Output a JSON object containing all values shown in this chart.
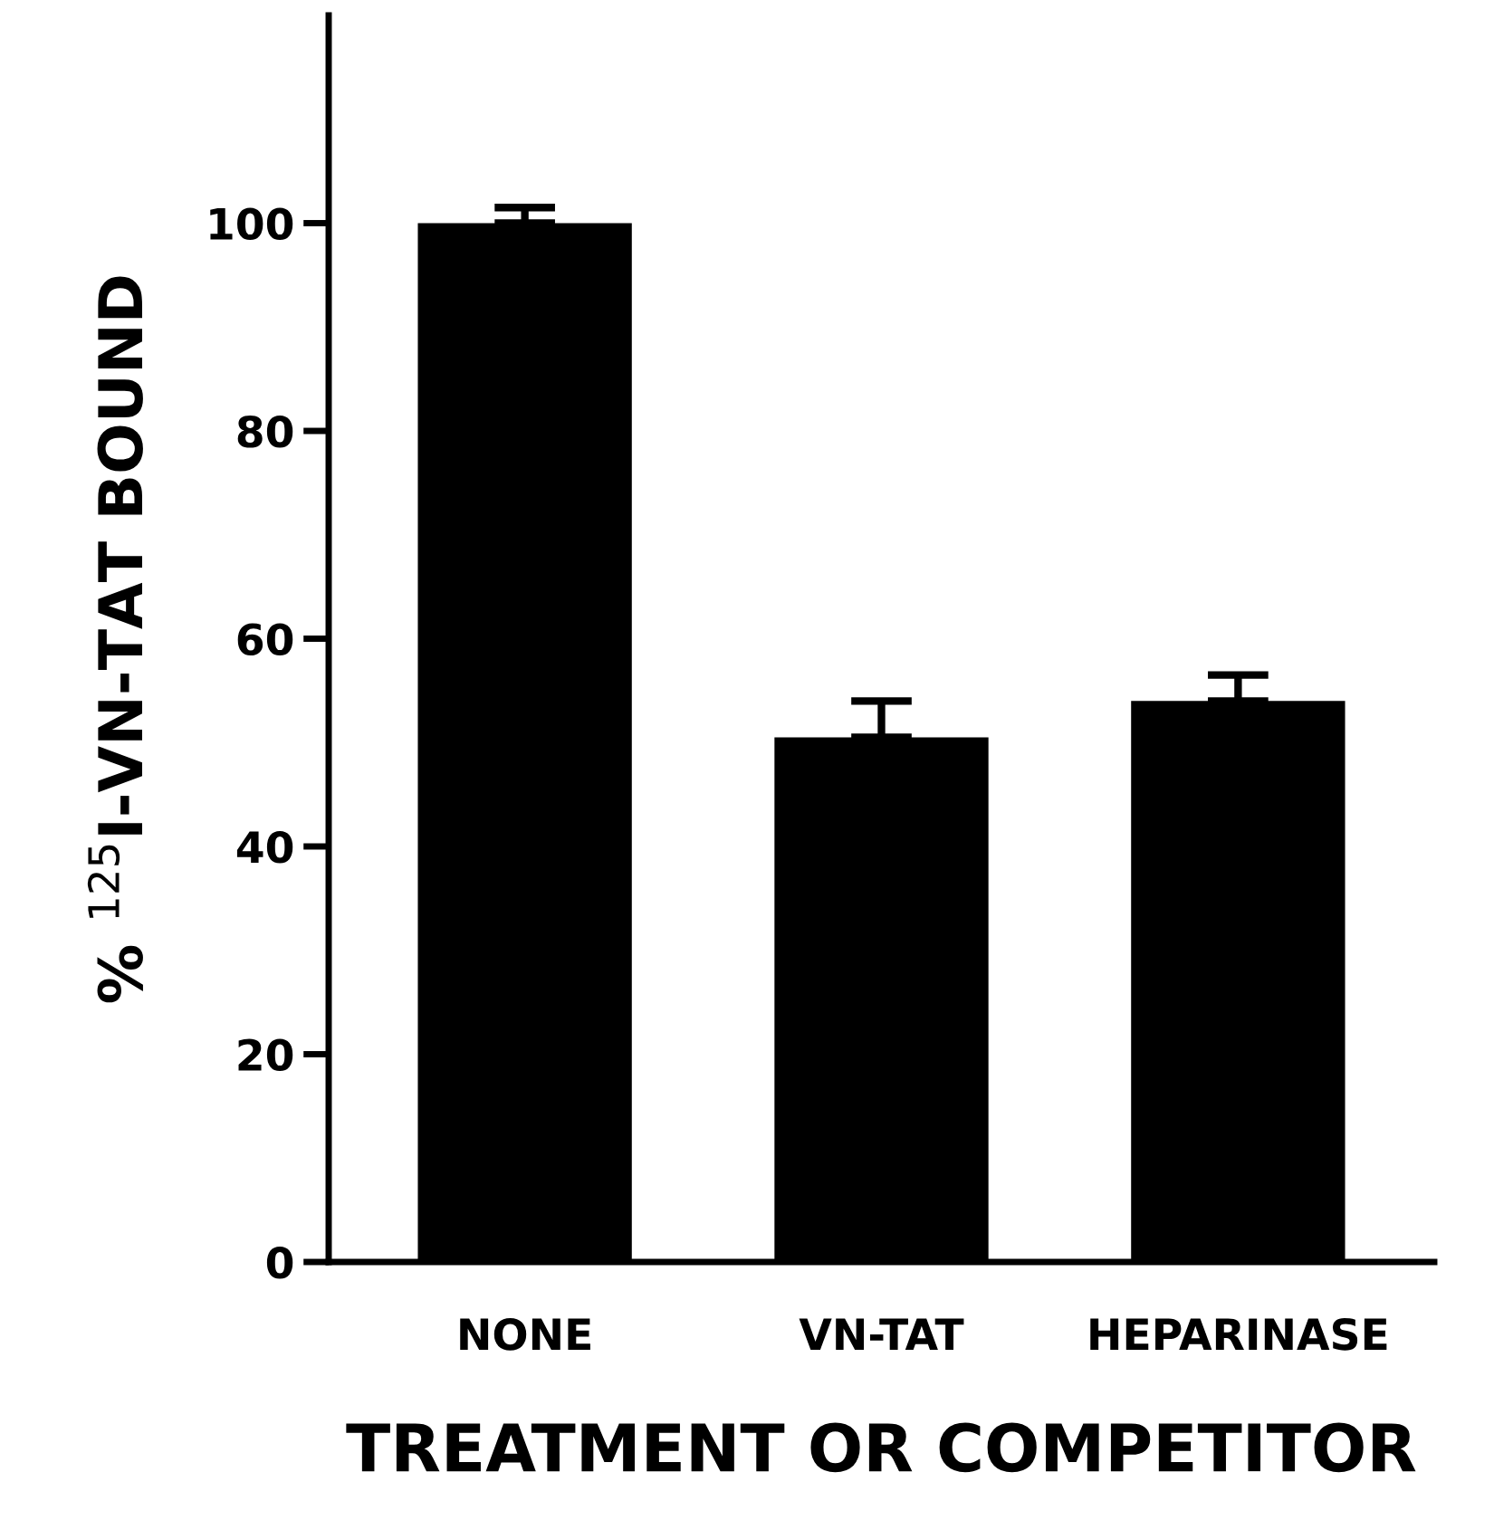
{
  "chart_data": {
    "type": "bar",
    "categories": [
      "NONE",
      "VN-TAT",
      "HEPARINASE"
    ],
    "values": [
      100,
      50.5,
      54
    ],
    "errors": [
      [
        100,
        101.5
      ],
      [
        50.5,
        54
      ],
      [
        54,
        56.5
      ]
    ],
    "color": "#000000",
    "xlabel": "TREATMENT OR COMPETITOR",
    "ylabel": "% $^{125}$I-VN-TAT BOUND",
    "ylim": [
      0,
      120
    ],
    "yticks": [
      0,
      20,
      40,
      60,
      80,
      100
    ],
    "grid": false,
    "legend": false
  }
}
